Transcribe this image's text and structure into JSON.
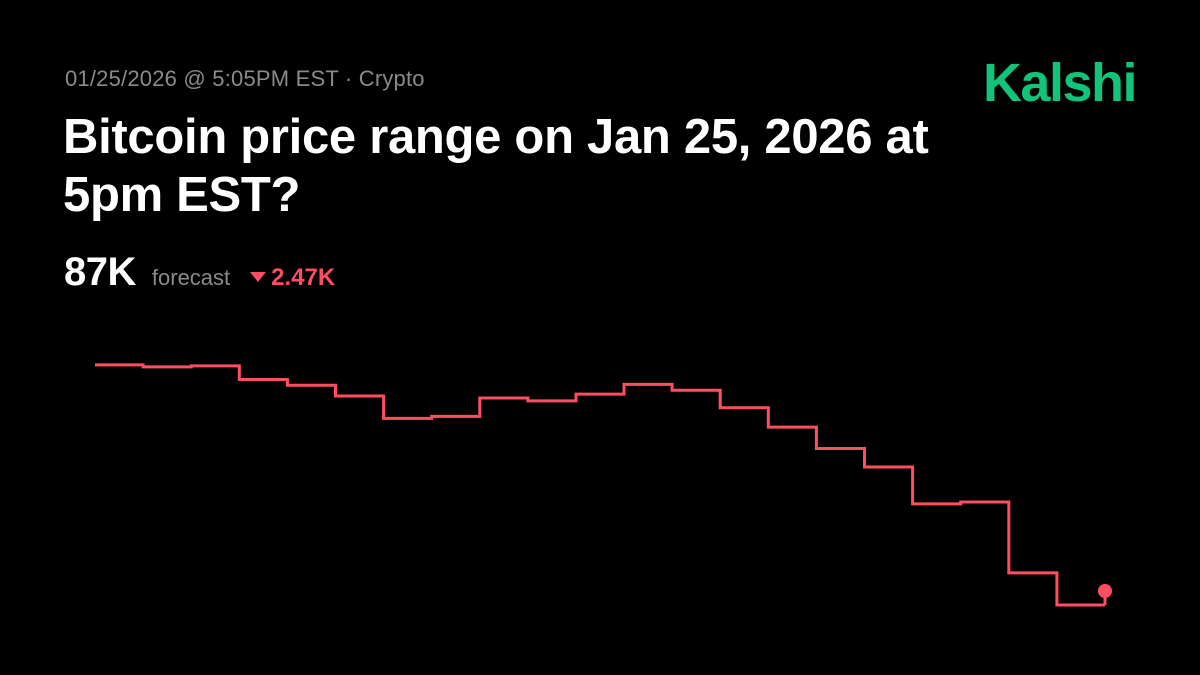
{
  "header": {
    "meta": "01/25/2026 @ 5:05PM EST · Crypto",
    "brand": "Kalshi",
    "title": "Bitcoin price range on Jan 25, 2026 at 5pm EST?"
  },
  "forecast": {
    "value": "87K",
    "label": "forecast",
    "change": "2.47K",
    "direction": "down"
  },
  "colors": {
    "line": "#ff4d61",
    "brand": "#12c47a",
    "muted": "#8a8a8a"
  },
  "chart_data": {
    "type": "line",
    "step": true,
    "x": [
      0,
      1,
      2,
      3,
      4,
      5,
      6,
      7,
      8,
      9,
      10,
      11,
      12,
      13,
      14,
      15,
      16,
      17,
      18,
      19,
      20,
      21
    ],
    "values": [
      89.47,
      89.45,
      89.46,
      89.32,
      89.26,
      89.15,
      88.92,
      88.94,
      89.13,
      89.1,
      89.17,
      89.27,
      89.21,
      89.03,
      88.83,
      88.61,
      88.42,
      88.04,
      88.06,
      87.33,
      87.0,
      87.0
    ],
    "ylim": [
      87.0,
      89.5
    ],
    "grid": false,
    "legend": "none",
    "end_marker": true
  }
}
